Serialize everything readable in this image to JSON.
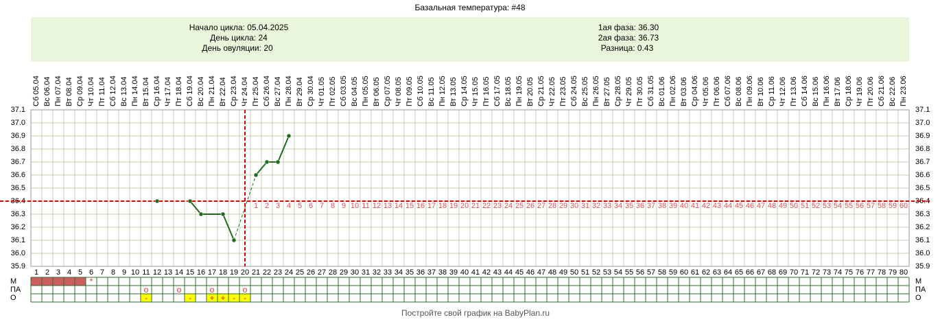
{
  "chart_data": {
    "type": "line",
    "title": "Базальная температура: #48",
    "x": [
      1,
      2,
      3,
      4,
      5,
      6,
      7,
      8,
      9,
      10,
      11,
      12,
      13,
      14,
      15,
      16,
      17,
      18,
      19,
      20,
      21,
      22,
      23,
      24,
      25,
      26,
      27,
      28,
      29,
      30,
      31,
      32,
      33,
      34,
      35,
      36,
      37,
      38,
      39,
      40,
      41,
      42,
      43,
      44,
      45,
      46,
      47,
      48,
      49,
      50,
      51,
      52,
      53,
      54,
      55,
      56,
      57,
      58,
      59,
      60,
      61,
      62,
      63,
      64,
      65,
      66,
      67,
      68,
      69,
      70,
      71,
      72,
      73,
      74,
      75,
      76,
      77,
      78,
      79,
      80
    ],
    "dates": [
      "Сб 05.04",
      "Вс 06.04",
      "Пн 07.04",
      "Вт 08.04",
      "Ср 09.04",
      "Чт 10.04",
      "Пт 11.04",
      "Сб 12.04",
      "Вс 13.04",
      "Пн 14.04",
      "Вт 15.04",
      "Ср 16.04",
      "Чт 17.04",
      "Пт 18.04",
      "Сб 19.04",
      "Вс 20.04",
      "Пн 21.04",
      "Вт 22.04",
      "Ср 23.04",
      "Чт 24.04",
      "Пт 25.04",
      "Сб 26.04",
      "Вс 27.04",
      "Пн 28.04",
      "Вт 29.04",
      "Ср 30.04",
      "Чт 01.05",
      "Пт 02.05",
      "Сб 03.05",
      "Вс 04.05",
      "Пн 05.05",
      "Вт 06.05",
      "Ср 07.05",
      "Чт 08.05",
      "Пт 09.05",
      "Сб 10.05",
      "Вс 11.05",
      "Пн 12.05",
      "Вт 13.05",
      "Ср 14.05",
      "Чт 15.05",
      "Пт 16.05",
      "Сб 17.05",
      "Вс 18.05",
      "Пн 19.05",
      "Вт 20.05",
      "Ср 21.05",
      "Чт 22.05",
      "Пт 23.05",
      "Сб 24.05",
      "Вс 25.05",
      "Пн 26.05",
      "Вт 27.05",
      "Ср 28.05",
      "Чт 29.05",
      "Пт 30.05",
      "Сб 31.05",
      "Вс 01.06",
      "Пн 02.06",
      "Вт 03.06",
      "Ср 04.06",
      "Чт 05.06",
      "Пт 06.06",
      "Сб 07.06",
      "Вс 08.06",
      "Пн 09.06",
      "Вт 10.06",
      "Ср 11.06",
      "Чт 12.06",
      "Пт 13.06",
      "Сб 14.06",
      "Вс 15.06",
      "Пн 16.06",
      "Вт 17.06",
      "Ср 18.06",
      "Чт 19.06",
      "Пт 20.06",
      "Сб 21.06",
      "Вс 22.06",
      "Пн 23.06"
    ],
    "values": [
      null,
      null,
      null,
      null,
      null,
      null,
      null,
      null,
      null,
      null,
      null,
      36.4,
      null,
      null,
      36.4,
      36.3,
      null,
      36.3,
      36.1,
      null,
      36.6,
      36.7,
      36.7,
      36.9,
      null,
      null,
      null,
      null,
      null,
      null,
      null,
      null,
      null,
      null,
      null,
      null,
      null,
      null,
      null,
      null,
      null,
      null,
      null,
      null,
      null,
      null,
      null,
      null,
      null,
      null,
      null,
      null,
      null,
      null,
      null,
      null,
      null,
      null,
      null,
      null,
      null,
      null,
      null,
      null,
      null,
      null,
      null,
      null,
      null,
      null,
      null,
      null,
      null,
      null,
      null,
      null,
      null,
      null,
      null,
      null
    ],
    "color": "#1e6b1e",
    "ylim": [
      35.9,
      37.1
    ],
    "yticks": [
      35.9,
      {
        "value": 36.0,
        "label": "36.0"
      },
      36.1,
      36.2,
      36.3,
      36.4,
      36.5,
      36.6,
      36.7,
      36.8,
      36.9,
      {
        "value": 37.0,
        "label": "37.0"
      },
      37.1
    ],
    "grid": true,
    "coverline": 36.4,
    "reference_color": "#dd0000",
    "post_ovulation_days": [
      1,
      2,
      3,
      4,
      5,
      6,
      7,
      8,
      9,
      10,
      11,
      12,
      13,
      14,
      15,
      16,
      17,
      18,
      19,
      20,
      21,
      22,
      23,
      24,
      25,
      26,
      27,
      28,
      29,
      30,
      31,
      32,
      33,
      34,
      35,
      36,
      37,
      38,
      39,
      40,
      41,
      42,
      43,
      44,
      45,
      46,
      47,
      48,
      49,
      50,
      51,
      52,
      53,
      54,
      55,
      56,
      57,
      58,
      59,
      60
    ]
  },
  "info": {
    "cycle_start": {
      "label": "Начало цикла:",
      "value": "05.04.2025"
    },
    "cycle_day": {
      "label": "День цикла:",
      "value": 24
    },
    "ovulation_day": {
      "label": "День овуляции:",
      "value": 20
    },
    "phase1": {
      "label": "1ая фаза:",
      "value": "36.30"
    },
    "phase2": {
      "label": "2ая фаза:",
      "value": "36.73"
    },
    "difference": {
      "label": "Разница:",
      "value": "0.43"
    }
  },
  "markers": [
    {
      "label": "М",
      "filled_days": [
        1,
        2,
        3,
        4,
        5
      ],
      "fill": "#cd5c5c",
      "symbol_color": "#dd3333",
      "symbols": [
        {
          "day": 6,
          "text": "*"
        }
      ]
    },
    {
      "label": "ПА",
      "symbol_color": "#dd3333",
      "symbols": [
        {
          "day": 11,
          "text": "o"
        },
        {
          "day": 14,
          "text": "o"
        },
        {
          "day": 17,
          "text": "o"
        },
        {
          "day": 20,
          "text": "o"
        }
      ]
    },
    {
      "label": "О",
      "filled_days": [
        11,
        15,
        17,
        18,
        19,
        20
      ],
      "fill": "#ffff00",
      "symbol_color": "#cc3300",
      "symbols": [
        {
          "day": 11,
          "text": "-"
        },
        {
          "day": 15,
          "text": "-"
        },
        {
          "day": 17,
          "text": "+"
        },
        {
          "day": 18,
          "text": "+"
        },
        {
          "day": 19,
          "text": "-"
        },
        {
          "day": 20,
          "text": "-"
        }
      ]
    }
  ],
  "footer": "Постройте свой график на BabyPlan.ru"
}
